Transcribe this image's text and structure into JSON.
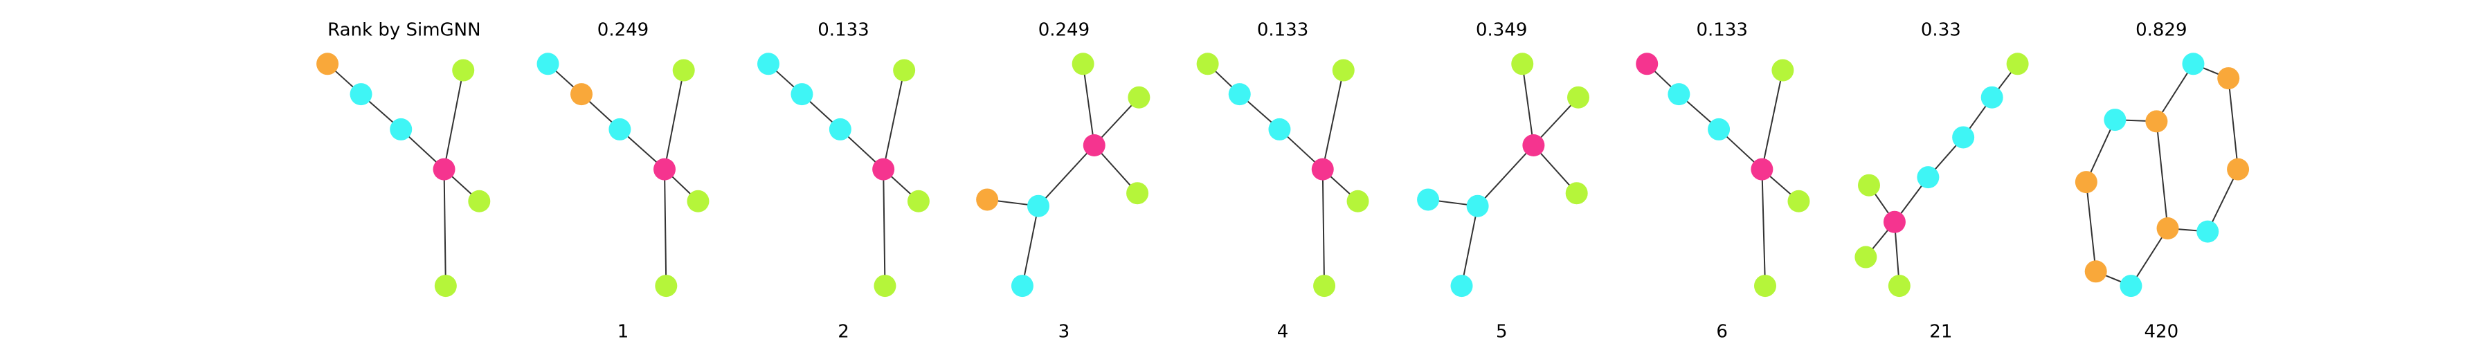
{
  "panels": [
    {
      "title": "Rank by SimGNN"
    },
    {
      "title": 0.249,
      "rank": 1
    },
    {
      "title": 0.133,
      "rank": 2
    },
    {
      "title": 0.249,
      "rank": 3
    },
    {
      "title": 0.133,
      "rank": 4
    },
    {
      "title": 0.349,
      "rank": 5
    },
    {
      "title": 0.133,
      "rank": 6
    },
    {
      "title": 0.33,
      "rank": 21
    },
    {
      "title": 0.829,
      "rank": 420
    }
  ]
}
